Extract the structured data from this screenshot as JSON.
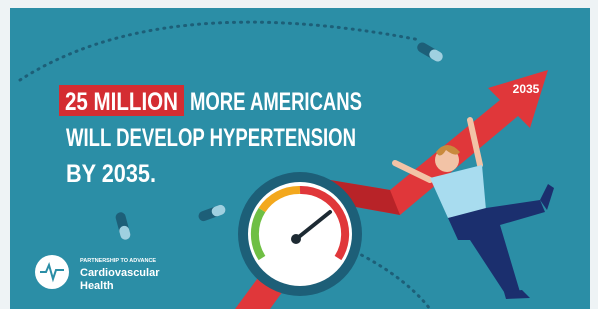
{
  "headline": {
    "highlight": "25 MILLION",
    "lines": [
      "MORE AMERICANS",
      "WILL DEVELOP HYPERTENSION",
      "BY 2035."
    ]
  },
  "arrow_label": "2035",
  "logo": {
    "tagline": "PARTNERSHIP TO ADVANCE",
    "name_lines": [
      "Cardiovascular",
      "Health"
    ]
  }
}
